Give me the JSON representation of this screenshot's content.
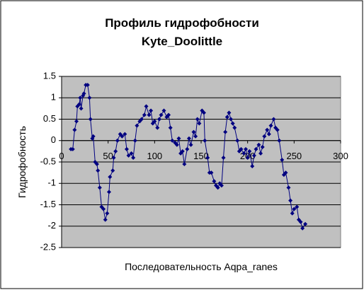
{
  "chart_data": {
    "type": "line",
    "title": "Профиль гидрофобности",
    "subtitle": "Kyte_Doolittle",
    "x_label": "Последовательность Aqpa_ranes",
    "y_label": "Гидрофобность",
    "x": [
      10,
      12,
      14,
      16,
      17,
      19,
      20,
      21,
      23,
      24,
      26,
      28,
      30,
      31,
      33,
      34,
      36,
      38,
      39,
      41,
      43,
      45,
      47,
      49,
      51,
      52,
      55,
      56,
      58,
      60,
      63,
      65,
      68,
      70,
      72,
      75,
      77,
      79,
      81,
      84,
      86,
      89,
      91,
      94,
      96,
      98,
      100,
      103,
      105,
      107,
      110,
      113,
      115,
      117,
      119,
      122,
      124,
      126,
      128,
      130,
      132,
      135,
      137,
      139,
      142,
      144,
      146,
      148,
      151,
      153,
      154,
      157,
      159,
      161,
      164,
      166,
      168,
      170,
      172,
      174,
      176,
      178,
      180,
      182,
      184,
      186,
      189,
      191,
      193,
      196,
      198,
      200,
      202,
      205,
      207,
      209,
      212,
      214,
      216,
      218,
      221,
      223,
      225,
      228,
      230,
      232,
      234,
      237,
      239,
      241,
      244,
      246,
      248,
      250,
      253,
      255,
      257,
      259,
      262
    ],
    "series": [
      {
        "color": "#000080",
        "values": [
          -0.2,
          -0.2,
          0.25,
          0.45,
          0.8,
          0.85,
          1.0,
          0.75,
          1.05,
          1.1,
          1.3,
          1.3,
          1.0,
          0.5,
          0.05,
          0.1,
          -0.5,
          -0.55,
          -0.7,
          -1.1,
          -1.55,
          -1.6,
          -1.85,
          -1.7,
          -1.2,
          -0.85,
          -0.7,
          -0.4,
          -0.25,
          0.0,
          0.15,
          0.1,
          0.15,
          -0.2,
          -0.35,
          -0.3,
          -0.4,
          0.0,
          0.35,
          0.45,
          0.5,
          0.6,
          0.8,
          0.6,
          0.7,
          0.4,
          0.45,
          0.3,
          0.5,
          0.6,
          0.7,
          0.55,
          0.6,
          0.3,
          0.0,
          -0.05,
          -0.1,
          0.05,
          -0.3,
          -0.25,
          -0.55,
          -0.2,
          0.05,
          -0.1,
          0.2,
          0.1,
          0.5,
          0.4,
          0.7,
          0.65,
          0.0,
          -0.4,
          -0.75,
          -0.75,
          -0.95,
          -1.05,
          -1.1,
          -1.0,
          -1.05,
          -0.4,
          0.2,
          0.55,
          0.65,
          0.5,
          0.4,
          0.3,
          0.0,
          -0.25,
          -0.2,
          -0.3,
          -0.2,
          -0.4,
          -0.25,
          -0.6,
          -0.35,
          -0.2,
          -0.1,
          -0.3,
          -0.15,
          0.1,
          0.25,
          0.15,
          0.35,
          0.5,
          0.3,
          0.25,
          0.0,
          -0.45,
          -0.8,
          -0.75,
          -1.1,
          -1.4,
          -1.7,
          -1.6,
          -1.55,
          -1.85,
          -1.9,
          -2.05,
          -1.95
        ]
      }
    ],
    "xlim": [
      0,
      300
    ],
    "xticks": [
      0,
      50,
      100,
      150,
      200,
      250,
      300
    ],
    "ylim": [
      -2.5,
      1.5
    ],
    "yticks": [
      1.5,
      1,
      0.5,
      0,
      -0.5,
      -1,
      -1.5,
      -2,
      -2.5
    ],
    "grid": true,
    "plot_background": "#c0c0c0"
  }
}
